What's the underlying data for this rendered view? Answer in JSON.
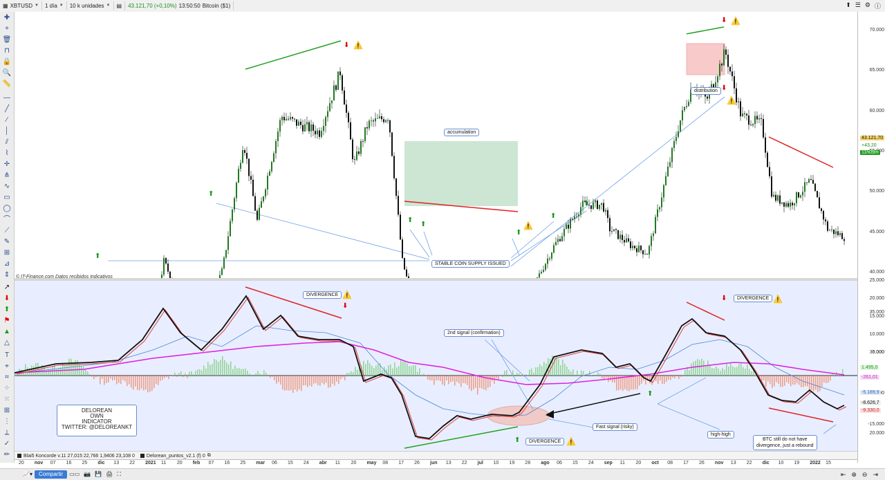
{
  "topbar": {
    "symbol": "XBTUSD",
    "interval": "1 día",
    "units": "10 k unidades",
    "price": "43.121,70 (+0,10%)",
    "time": "13:50:50",
    "instrument": "Bitcoin ($1)"
  },
  "main_chart": {
    "source": "© IT-Finance.com  Datos recibidos indicativos",
    "accumulation_label": "accumulation",
    "distribution_label": "distribution",
    "stable_coin_label": "STABLE COIN SUPPLY ISSUED",
    "y_ticks": [
      "70.000",
      "65.000",
      "60.000",
      "55.000",
      "50.000",
      "45.000",
      "40.000",
      "35.000",
      "30.000",
      "25.000",
      "20.000",
      "15.000"
    ],
    "last_price": "43.121,70",
    "change": "+43,20",
    "countdown": "11h09m"
  },
  "indicator": {
    "y_ticks": [
      "25.000",
      "20.000",
      "15.000",
      "10.000",
      "5.000",
      "-15.000"
    ],
    "tags": [
      "1.495,0",
      "-261,01",
      "-5.189,9",
      "-8.626,7",
      "-9.330,0"
    ],
    "divergence_label": "DIVERGENCE",
    "second_signal": "2nd signal (confirmation)",
    "fast_signal": "Fast signal (risky)",
    "high_high": "high-high",
    "btc_note_1": "BTC still do not have",
    "btc_note_2": "divergence, just a rebound",
    "own_indicator": [
      "DELOREAN",
      "OWN",
      "INDICATOR",
      "TWITTER: @DELOREANKT"
    ]
  },
  "legend": {
    "item1": "Blai5 Koncorde v.11  27,015  22,766  1,9406  23,108  0",
    "item2": "Delorean_puntos_v2.1 (f)  0"
  },
  "time_axis": [
    "20",
    "nov",
    "07",
    "16",
    "25",
    "dic",
    "13",
    "22",
    "2021",
    "11",
    "20",
    "feb",
    "07",
    "16",
    "25",
    "mar",
    "06",
    "15",
    "24",
    "abr",
    "11",
    "20",
    "may",
    "08",
    "17",
    "26",
    "jun",
    "13",
    "22",
    "jul",
    "10",
    "19",
    "28",
    "ago",
    "06",
    "15",
    "24",
    "sep",
    "11",
    "20",
    "oct",
    "08",
    "17",
    "26",
    "nov",
    "13",
    "22",
    "dic",
    "10",
    "19",
    "2022",
    "15"
  ],
  "bottombar": {
    "share": "Compartir"
  },
  "colors": {
    "up": "#1f7a1f",
    "down": "#111111",
    "green_line": "#22a022",
    "red_line": "#e02020",
    "blue_line": "#6fa0e6",
    "magenta": "#e020e0"
  }
}
